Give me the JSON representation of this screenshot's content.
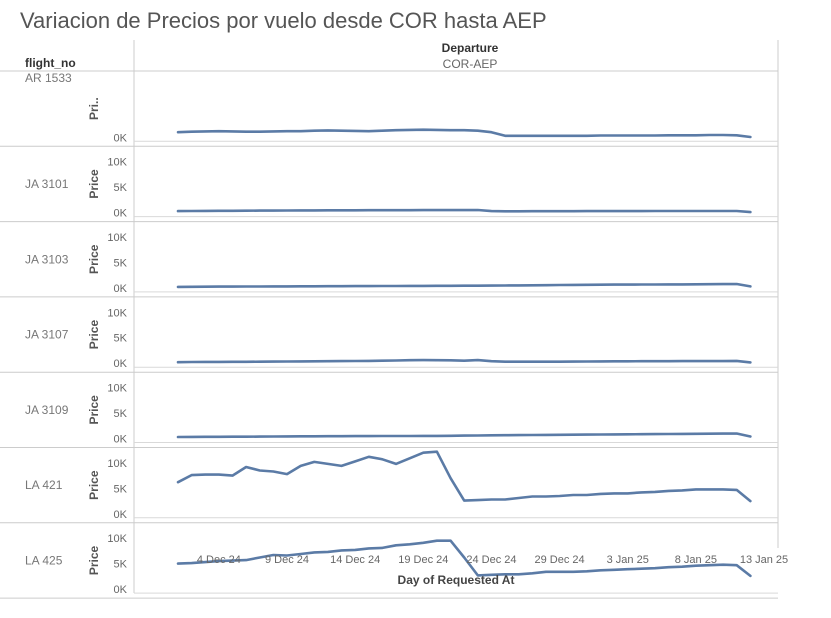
{
  "title": "Variacion de Precios por vuelo desde COR hasta AEP",
  "row_header": "flight_no",
  "column_header": "Departure",
  "column_value": "COR-AEP",
  "x_axis_label": "Day of Requested At",
  "x_tick_labels": [
    "4 Dec 24",
    "9 Dec 24",
    "14 Dec 24",
    "19 Dec 24",
    "24 Dec 24",
    "29 Dec 24",
    "3 Jan 25",
    "8 Jan 25",
    "13 Jan 25"
  ],
  "colors": {
    "line": "#5b7ba6",
    "grid": "#d9d9d9",
    "axis_text": "#666666"
  },
  "chart_data": {
    "type": "line",
    "title": "Variacion de Precios por vuelo desde COR hasta AEP",
    "xlabel": "Day of Requested At",
    "ylabel": "Price",
    "x_start": "2024-12-01",
    "x_end": "2025-01-13",
    "ylim": [
      0,
      11000
    ],
    "y_ticks": [
      0,
      5000,
      10000
    ],
    "y_tick_labels": [
      "0K",
      "5K",
      "10K"
    ],
    "x": [
      "2024-12-01",
      "2024-12-02",
      "2024-12-03",
      "2024-12-04",
      "2024-12-05",
      "2024-12-06",
      "2024-12-07",
      "2024-12-08",
      "2024-12-09",
      "2024-12-10",
      "2024-12-11",
      "2024-12-12",
      "2024-12-13",
      "2024-12-14",
      "2024-12-15",
      "2024-12-16",
      "2024-12-17",
      "2024-12-18",
      "2024-12-19",
      "2024-12-20",
      "2024-12-21",
      "2024-12-22",
      "2024-12-23",
      "2024-12-24",
      "2024-12-25",
      "2024-12-26",
      "2024-12-27",
      "2024-12-28",
      "2024-12-29",
      "2024-12-30",
      "2024-12-31",
      "2025-01-01",
      "2025-01-02",
      "2025-01-03",
      "2025-01-04",
      "2025-01-05",
      "2025-01-06",
      "2025-01-07",
      "2025-01-08",
      "2025-01-09",
      "2025-01-10",
      "2025-01-11",
      "2025-01-12"
    ],
    "series": [
      {
        "name": "AR 1533",
        "y_label": "Pri..",
        "show_ticks": false,
        "values": [
          1000,
          1100,
          1150,
          1200,
          1150,
          1100,
          1100,
          1150,
          1200,
          1200,
          1300,
          1350,
          1300,
          1250,
          1200,
          1300,
          1400,
          1450,
          1500,
          1450,
          1400,
          1400,
          1300,
          1000,
          300,
          300,
          300,
          300,
          300,
          300,
          300,
          350,
          350,
          350,
          350,
          350,
          400,
          400,
          400,
          450,
          450,
          400,
          50
        ]
      },
      {
        "name": "JA 3101",
        "y_label": "Price",
        "show_ticks": true,
        "values": [
          300,
          320,
          340,
          350,
          360,
          380,
          400,
          400,
          420,
          430,
          440,
          450,
          460,
          460,
          470,
          480,
          480,
          480,
          490,
          500,
          500,
          500,
          520,
          300,
          250,
          260,
          270,
          270,
          280,
          280,
          290,
          290,
          300,
          300,
          300,
          310,
          310,
          310,
          310,
          320,
          320,
          320,
          100
        ]
      },
      {
        "name": "JA 3103",
        "y_label": "Price",
        "show_ticks": true,
        "values": [
          200,
          220,
          240,
          250,
          260,
          270,
          280,
          300,
          300,
          310,
          320,
          330,
          340,
          350,
          360,
          370,
          380,
          390,
          400,
          410,
          420,
          430,
          440,
          450,
          480,
          500,
          520,
          540,
          560,
          580,
          600,
          620,
          640,
          650,
          660,
          670,
          680,
          690,
          700,
          720,
          740,
          760,
          300
        ]
      },
      {
        "name": "JA 3107",
        "y_label": "Price",
        "show_ticks": true,
        "values": [
          200,
          230,
          250,
          260,
          270,
          280,
          300,
          320,
          340,
          360,
          380,
          400,
          420,
          440,
          460,
          500,
          540,
          580,
          600,
          580,
          560,
          500,
          600,
          400,
          300,
          300,
          300,
          300,
          300,
          320,
          340,
          360,
          370,
          380,
          390,
          400,
          400,
          410,
          420,
          420,
          420,
          450,
          150
        ]
      },
      {
        "name": "JA 3109",
        "y_label": "Price",
        "show_ticks": true,
        "values": [
          300,
          320,
          330,
          340,
          350,
          360,
          380,
          400,
          420,
          430,
          440,
          450,
          460,
          470,
          480,
          490,
          500,
          500,
          510,
          520,
          530,
          560,
          580,
          620,
          640,
          660,
          680,
          700,
          720,
          740,
          760,
          780,
          800,
          820,
          840,
          860,
          880,
          900,
          920,
          940,
          960,
          980,
          400
        ]
      },
      {
        "name": "LA 421",
        "y_label": "Price",
        "show_ticks": true,
        "values": [
          6200,
          7600,
          7700,
          7700,
          7500,
          9200,
          8500,
          8300,
          7800,
          9400,
          10200,
          9800,
          9400,
          10300,
          11200,
          10700,
          9800,
          10900,
          12000,
          12200,
          7000,
          2600,
          2700,
          2800,
          2800,
          3100,
          3400,
          3400,
          3500,
          3700,
          3700,
          3900,
          4000,
          4000,
          4200,
          4300,
          4500,
          4600,
          4800,
          4800,
          4800,
          4700,
          2500
        ]
      },
      {
        "name": "LA 425",
        "y_label": "Price",
        "show_ticks": true,
        "values": [
          5000,
          5100,
          5300,
          5500,
          5600,
          5700,
          6200,
          6700,
          6600,
          6900,
          7200,
          7300,
          7600,
          7700,
          8000,
          8100,
          8600,
          8800,
          9100,
          9500,
          9500,
          6200,
          2700,
          2800,
          2900,
          2900,
          3100,
          3400,
          3400,
          3400,
          3500,
          3700,
          3800,
          3900,
          4000,
          4100,
          4300,
          4400,
          4600,
          4700,
          4800,
          4700,
          2600
        ]
      }
    ]
  }
}
